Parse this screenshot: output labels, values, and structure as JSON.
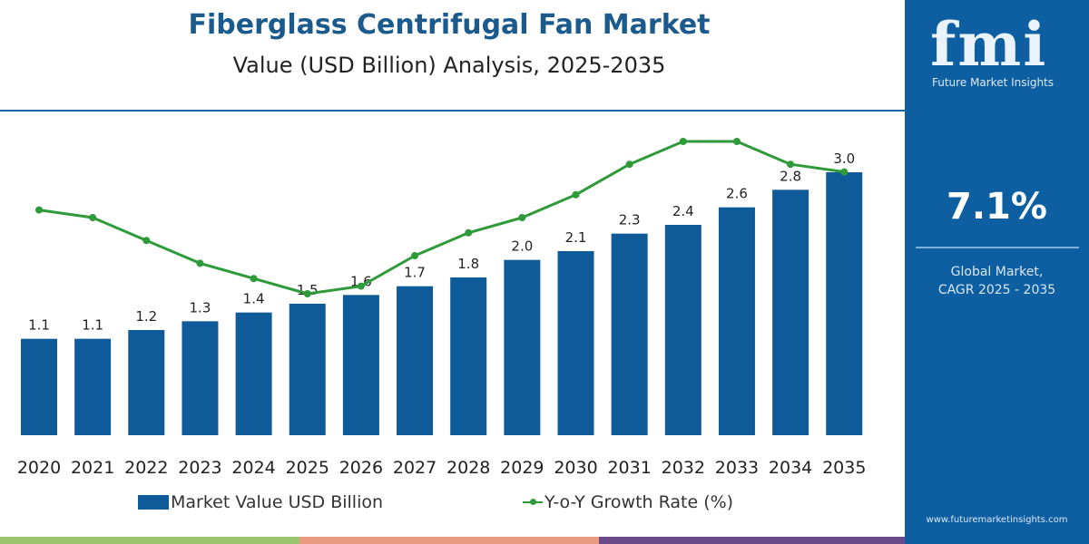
{
  "header": {
    "title": "Fiberglass Centrifugal Fan Market",
    "subtitle": "Value (USD Billion) Analysis, 2025-2035"
  },
  "panel": {
    "logo": "fmi",
    "logo_sub": "Future Market Insights",
    "cagr": "7.1%",
    "cagr_label_1": "Global Market,",
    "cagr_label_2": "CAGR 2025 - 2035",
    "url": "www.futuremarketinsights.com"
  },
  "colors": {
    "bar": "#0f5a98",
    "line": "#2e9a3a",
    "panel": "#0e5fa1",
    "stripes": [
      "#9bc46e",
      "#e99a7f",
      "#6a4a8a"
    ]
  },
  "chart_data": {
    "type": "bar",
    "categories": [
      "2020",
      "2021",
      "2022",
      "2023",
      "2024",
      "2025",
      "2026",
      "2027",
      "2028",
      "2029",
      "2030",
      "2031",
      "2032",
      "2033",
      "2034",
      "2035"
    ],
    "series": [
      {
        "name": "Market Value USD Billion",
        "type": "bar",
        "values": [
          1.1,
          1.1,
          1.2,
          1.3,
          1.4,
          1.5,
          1.6,
          1.7,
          1.8,
          2.0,
          2.1,
          2.3,
          2.4,
          2.6,
          2.8,
          3.0
        ],
        "labels": [
          "1.1",
          "1.1",
          "1.2",
          "1.3",
          "1.4",
          "1.5",
          "1.6",
          "1.7",
          "1.8",
          "2.0",
          "2.1",
          "2.3",
          "2.4",
          "2.6",
          "2.8",
          "3.0"
        ]
      },
      {
        "name": "Y-o-Y Growth Rate (%)",
        "type": "line",
        "values": [
          7.1,
          7.0,
          6.7,
          6.4,
          6.2,
          6.0,
          6.1,
          6.5,
          6.8,
          7.0,
          7.3,
          7.7,
          8.0,
          8.0,
          7.7,
          7.6
        ]
      }
    ],
    "ylim": [
      0,
      3.0
    ],
    "y2lim": [
      6.0,
      8.0
    ],
    "grid": false,
    "legend": "bottom"
  }
}
